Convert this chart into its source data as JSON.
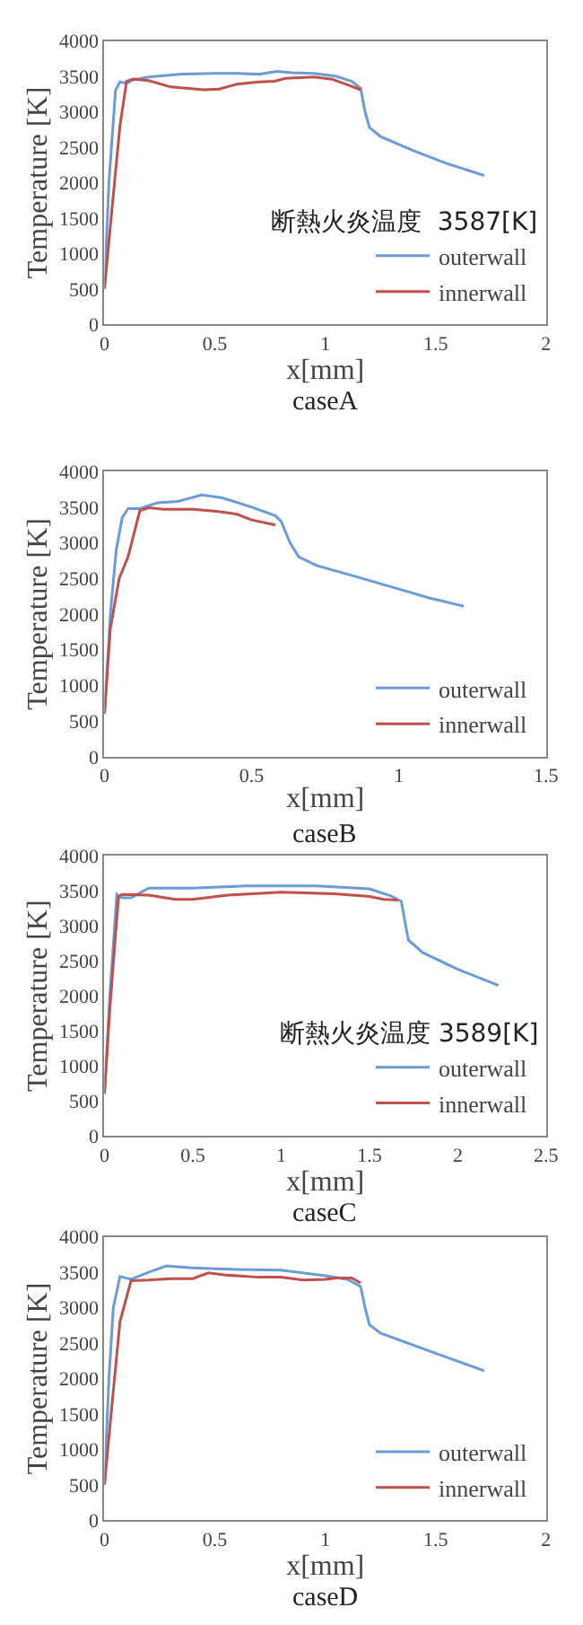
{
  "chart_data": [
    {
      "type": "line",
      "title": "caseA",
      "xlabel": "x[mm]",
      "ylabel": "Temperature [K]",
      "annotations": [
        "断熱火炎温度  3587[K]"
      ],
      "xlim": [
        0,
        2
      ],
      "xticks": [
        0,
        0.5,
        1,
        1.5,
        2
      ],
      "ylim": [
        0,
        4000
      ],
      "yticks": [
        0,
        500,
        1000,
        1500,
        2000,
        2500,
        3000,
        3500,
        4000
      ],
      "grid": false,
      "legend": "bottom right",
      "marker": "none",
      "line_style": "solid",
      "series": [
        {
          "name": "outerwall",
          "color": "#6b9bd8",
          "x": [
            0,
            0.02,
            0.05,
            0.07,
            0.1,
            0.13,
            0.2,
            0.35,
            0.5,
            0.6,
            0.7,
            0.78,
            0.85,
            0.95,
            1.05,
            1.12,
            1.16,
            1.18,
            1.2,
            1.25,
            1.4,
            1.55,
            1.72
          ],
          "values": [
            500,
            2000,
            3300,
            3420,
            3400,
            3450,
            3490,
            3530,
            3540,
            3540,
            3530,
            3570,
            3550,
            3540,
            3500,
            3430,
            3330,
            3000,
            2780,
            2650,
            2450,
            2270,
            2100
          ]
        },
        {
          "name": "innerwall",
          "color": "#c0504d",
          "x": [
            0,
            0.03,
            0.07,
            0.1,
            0.13,
            0.2,
            0.3,
            0.45,
            0.52,
            0.6,
            0.7,
            0.77,
            0.82,
            0.95,
            1.03,
            1.1,
            1.16
          ],
          "values": [
            500,
            1500,
            2800,
            3430,
            3460,
            3440,
            3350,
            3310,
            3320,
            3390,
            3420,
            3430,
            3470,
            3490,
            3460,
            3380,
            3310
          ]
        }
      ]
    },
    {
      "type": "line",
      "title": "caseB",
      "xlabel": "x[mm]",
      "ylabel": "Temperature [K]",
      "xlim": [
        0,
        1.5
      ],
      "xticks": [
        0,
        0.5,
        1,
        1.5
      ],
      "ylim": [
        0,
        4000
      ],
      "yticks": [
        0,
        500,
        1000,
        1500,
        2000,
        2500,
        3000,
        3500,
        4000
      ],
      "grid": false,
      "legend": "bottom right",
      "marker": "none",
      "line_style": "solid",
      "series": [
        {
          "name": "outerwall",
          "color": "#6b9bd8",
          "x": [
            0,
            0.02,
            0.04,
            0.06,
            0.08,
            0.12,
            0.18,
            0.25,
            0.33,
            0.4,
            0.5,
            0.58,
            0.6,
            0.63,
            0.66,
            0.72,
            0.85,
            1.0,
            1.1,
            1.22
          ],
          "values": [
            600,
            2000,
            2900,
            3350,
            3480,
            3480,
            3560,
            3580,
            3670,
            3630,
            3500,
            3380,
            3300,
            3000,
            2800,
            2680,
            2530,
            2350,
            2230,
            2110
          ]
        },
        {
          "name": "innerwall",
          "color": "#c0504d",
          "x": [
            0,
            0.02,
            0.05,
            0.08,
            0.12,
            0.15,
            0.2,
            0.3,
            0.38,
            0.45,
            0.5,
            0.58
          ],
          "values": [
            600,
            1800,
            2500,
            2800,
            3450,
            3490,
            3470,
            3470,
            3440,
            3400,
            3320,
            3250
          ]
        }
      ]
    },
    {
      "type": "line",
      "title": "caseC",
      "xlabel": "x[mm]",
      "ylabel": "Temperature [K]",
      "annotations": [
        "断熱火炎温度 3589[K]"
      ],
      "xlim": [
        0,
        2.5
      ],
      "xticks": [
        0,
        0.5,
        1,
        1.5,
        2,
        2.5
      ],
      "ylim": [
        0,
        4000
      ],
      "yticks": [
        0,
        500,
        1000,
        1500,
        2000,
        2500,
        3000,
        3500,
        4000
      ],
      "grid": false,
      "legend": "bottom right",
      "marker": "none",
      "line_style": "solid",
      "series": [
        {
          "name": "outerwall",
          "color": "#6b9bd8",
          "x": [
            0,
            0.03,
            0.07,
            0.1,
            0.15,
            0.25,
            0.5,
            0.8,
            1.2,
            1.5,
            1.62,
            1.68,
            1.72,
            1.8,
            2.0,
            2.23
          ],
          "values": [
            600,
            2000,
            3450,
            3400,
            3400,
            3540,
            3540,
            3570,
            3570,
            3530,
            3430,
            3350,
            2800,
            2620,
            2380,
            2150
          ]
        },
        {
          "name": "innerwall",
          "color": "#c0504d",
          "x": [
            0,
            0.03,
            0.06,
            0.08,
            0.1,
            0.25,
            0.4,
            0.5,
            0.7,
            1.0,
            1.3,
            1.5,
            1.58,
            1.66
          ],
          "values": [
            600,
            1800,
            2800,
            3420,
            3450,
            3440,
            3380,
            3380,
            3440,
            3480,
            3460,
            3420,
            3380,
            3370
          ]
        }
      ]
    },
    {
      "type": "line",
      "title": "caseD",
      "xlabel": "x[mm]",
      "ylabel": "Temperature [K]",
      "xlim": [
        0,
        2
      ],
      "xticks": [
        0,
        0.5,
        1,
        1.5,
        2
      ],
      "ylim": [
        0,
        4000
      ],
      "yticks": [
        0,
        500,
        1000,
        1500,
        2000,
        2500,
        3000,
        3500,
        4000
      ],
      "grid": false,
      "legend": "bottom right",
      "marker": "none",
      "line_style": "solid",
      "series": [
        {
          "name": "outerwall",
          "color": "#6b9bd8",
          "x": [
            0,
            0.02,
            0.04,
            0.07,
            0.12,
            0.2,
            0.28,
            0.4,
            0.6,
            0.8,
            1.0,
            1.1,
            1.16,
            1.18,
            1.2,
            1.25,
            1.4,
            1.55,
            1.72
          ],
          "values": [
            500,
            2000,
            3000,
            3440,
            3400,
            3500,
            3590,
            3560,
            3540,
            3530,
            3450,
            3400,
            3300,
            3000,
            2760,
            2640,
            2470,
            2300,
            2110
          ]
        },
        {
          "name": "innerwall",
          "color": "#c0504d",
          "x": [
            0,
            0.03,
            0.07,
            0.12,
            0.2,
            0.3,
            0.4,
            0.47,
            0.55,
            0.7,
            0.8,
            0.9,
            1.0,
            1.05,
            1.12,
            1.16
          ],
          "values": [
            500,
            1500,
            2800,
            3380,
            3390,
            3410,
            3410,
            3490,
            3460,
            3430,
            3430,
            3390,
            3400,
            3420,
            3420,
            3350
          ]
        }
      ]
    }
  ]
}
